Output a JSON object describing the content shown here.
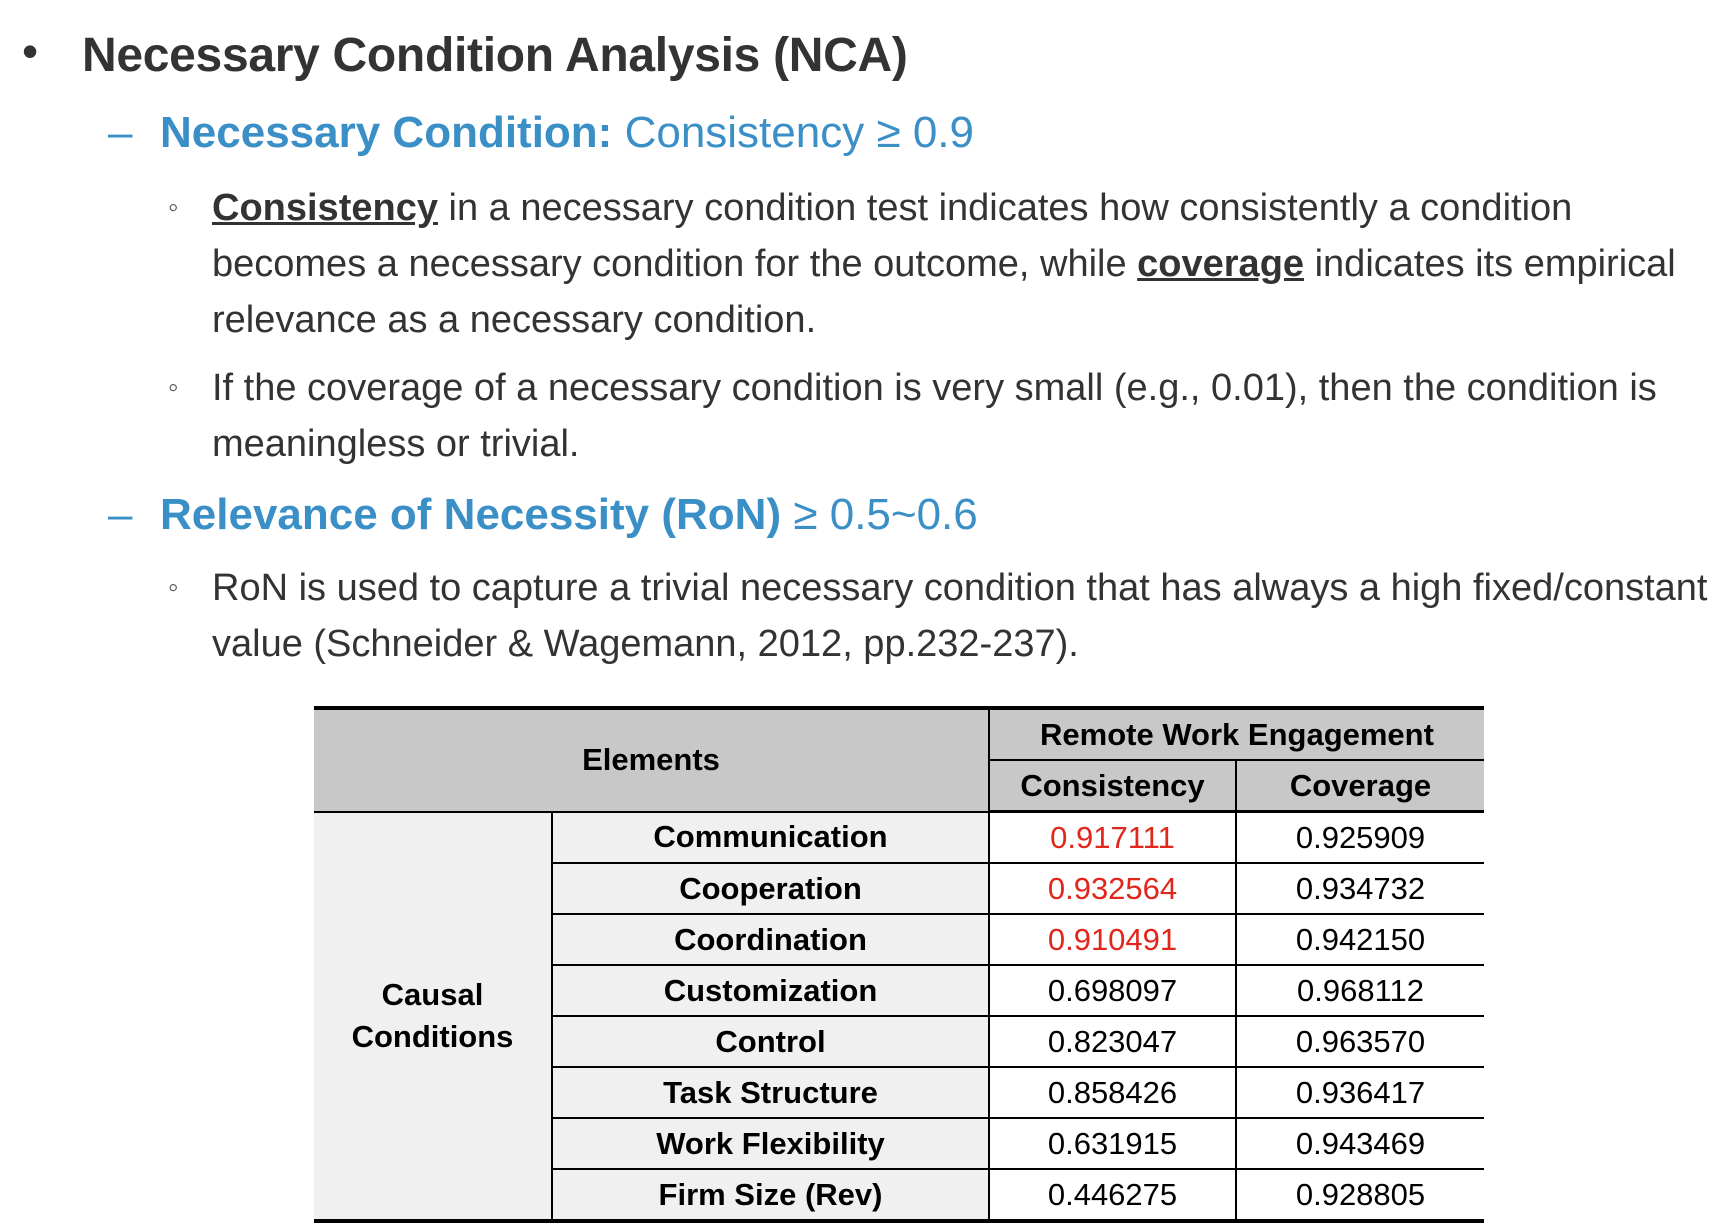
{
  "heading": {
    "bullet": "•",
    "text": "Necessary Condition Analysis (NCA)"
  },
  "section1": {
    "dash": "–",
    "bold": "Necessary Condition:",
    "rest": " Consistency ≥ 0.9",
    "bullets": [
      {
        "marker": "◦",
        "term1": "Consistency",
        "part1": " in a necessary condition test indicates how consistently a condition becomes a necessary condition for the outcome, while ",
        "term2": "coverage",
        "part2": " indicates its empirical relevance as a necessary condition."
      },
      {
        "marker": "◦",
        "text": "If the coverage of a necessary condition is very small (e.g., 0.01), then the condition is meaningless or trivial."
      }
    ]
  },
  "section2": {
    "dash": "–",
    "bold": "Relevance of Necessity (RoN)",
    "rest": " ≥ 0.5~0.6",
    "bullets": [
      {
        "marker": "◦",
        "text": "RoN is used to capture a trivial necessary condition that has always a high fixed/constant value (Schneider & Wagemann, 2012, pp.232-237)."
      }
    ]
  },
  "table": {
    "elements_header": "Elements",
    "group_header": "Remote Work Engagement",
    "col_consistency": "Consistency",
    "col_coverage": "Coverage",
    "row_group_line1": "Causal",
    "row_group_line2": "Conditions",
    "rows": [
      {
        "name": "Communication",
        "consistency": "0.917111",
        "coverage": "0.925909"
      },
      {
        "name": "Cooperation",
        "consistency": "0.932564",
        "coverage": "0.934732"
      },
      {
        "name": "Coordination",
        "consistency": "0.910491",
        "coverage": "0.942150"
      },
      {
        "name": "Customization",
        "consistency": "0.698097",
        "coverage": "0.968112"
      },
      {
        "name": "Control",
        "consistency": "0.823047",
        "coverage": "0.963570"
      },
      {
        "name": "Task Structure",
        "consistency": "0.858426",
        "coverage": "0.936417"
      },
      {
        "name": "Work Flexibility",
        "consistency": "0.631915",
        "coverage": "0.943469"
      },
      {
        "name": "Firm Size (Rev)",
        "consistency": "0.446275",
        "coverage": "0.928805"
      }
    ],
    "highlight_color": "#e1261c"
  }
}
